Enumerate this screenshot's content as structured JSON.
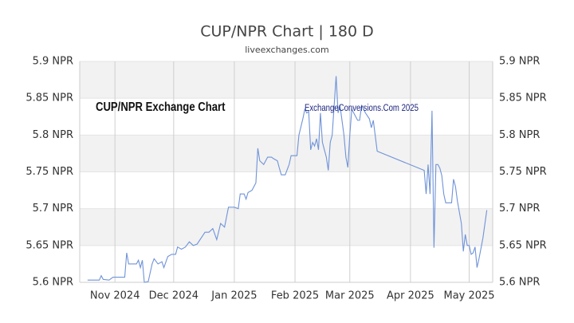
{
  "chart_data": {
    "type": "line",
    "title": "CUP/NPR Chart | 180 D",
    "subtitle": "liveexchanges.com",
    "annotations": [
      "CUP/NPR Exchange Chart",
      "ExchangeConversions.Com 2025"
    ],
    "color": "#6f93d8",
    "xlim": [
      -18,
      193
    ],
    "xticks": [
      {
        "value": 0,
        "label": "Nov 2024"
      },
      {
        "value": 30,
        "label": "Dec 2024"
      },
      {
        "value": 61,
        "label": "Jan 2025"
      },
      {
        "value": 92,
        "label": "Feb 2025"
      },
      {
        "value": 120,
        "label": "Mar 2025"
      },
      {
        "value": 151,
        "label": "Apr 2025"
      },
      {
        "value": 181,
        "label": "May 2025"
      }
    ],
    "ylim": [
      5.6,
      5.9
    ],
    "yticks": [
      {
        "value": 5.6,
        "label": "5.6 NPR"
      },
      {
        "value": 5.65,
        "label": "5.65 NPR"
      },
      {
        "value": 5.7,
        "label": "5.7 NPR"
      },
      {
        "value": 5.75,
        "label": "5.75 NPR"
      },
      {
        "value": 5.8,
        "label": "5.8 NPR"
      },
      {
        "value": 5.85,
        "label": "5.85 NPR"
      },
      {
        "value": 5.9,
        "label": "5.9 NPR"
      }
    ],
    "x": [
      -14,
      -8,
      -7,
      -6,
      -3,
      -1,
      2,
      5,
      6,
      7,
      9,
      11,
      12,
      13,
      14,
      15,
      17,
      19,
      20,
      22,
      24,
      25,
      27,
      29,
      31,
      32,
      34,
      36,
      38,
      40,
      42,
      44,
      46,
      48,
      50,
      52,
      54,
      56,
      58,
      61,
      63,
      64,
      66,
      67,
      68,
      70,
      72,
      73,
      74,
      76,
      78,
      80,
      81,
      83,
      84,
      85,
      87,
      89,
      90,
      93,
      94,
      96,
      97,
      98,
      99,
      100,
      101,
      102,
      103,
      104,
      105,
      106,
      107,
      108,
      109,
      110,
      111,
      112,
      113,
      114,
      115,
      116,
      117,
      118,
      119,
      120,
      121,
      122,
      124,
      125,
      126,
      128,
      130,
      131,
      132,
      134,
      158,
      159,
      160,
      161,
      162,
      163,
      164,
      165,
      166,
      167,
      168,
      169,
      172,
      173,
      174,
      175,
      177,
      178,
      179,
      180,
      181,
      182,
      183,
      184,
      185,
      186,
      188,
      190
    ],
    "values": [
      5.603,
      5.603,
      5.609,
      5.604,
      5.603,
      5.607,
      5.607,
      5.607,
      5.64,
      5.625,
      5.625,
      5.625,
      5.63,
      5.62,
      5.63,
      5.6,
      5.601,
      5.625,
      5.632,
      5.625,
      5.628,
      5.62,
      5.635,
      5.638,
      5.638,
      5.648,
      5.645,
      5.648,
      5.655,
      5.65,
      5.652,
      5.66,
      5.668,
      5.668,
      5.673,
      5.658,
      5.68,
      5.675,
      5.702,
      5.702,
      5.7,
      5.72,
      5.72,
      5.713,
      5.722,
      5.725,
      5.735,
      5.782,
      5.765,
      5.76,
      5.77,
      5.77,
      5.768,
      5.765,
      5.755,
      5.746,
      5.746,
      5.76,
      5.772,
      5.772,
      5.8,
      5.822,
      5.835,
      5.83,
      5.832,
      5.78,
      5.79,
      5.785,
      5.795,
      5.78,
      5.83,
      5.79,
      5.78,
      5.77,
      5.752,
      5.79,
      5.8,
      5.84,
      5.88,
      5.83,
      5.84,
      5.82,
      5.8,
      5.77,
      5.756,
      5.8,
      5.835,
      5.83,
      5.82,
      5.82,
      5.84,
      5.83,
      5.822,
      5.81,
      5.82,
      5.778,
      5.752,
      5.72,
      5.76,
      5.72,
      5.833,
      5.647,
      5.76,
      5.76,
      5.755,
      5.745,
      5.72,
      5.708,
      5.708,
      5.74,
      5.73,
      5.71,
      5.68,
      5.642,
      5.665,
      5.65,
      5.65,
      5.638,
      5.64,
      5.648,
      5.62,
      5.632,
      5.66,
      5.698
    ]
  }
}
